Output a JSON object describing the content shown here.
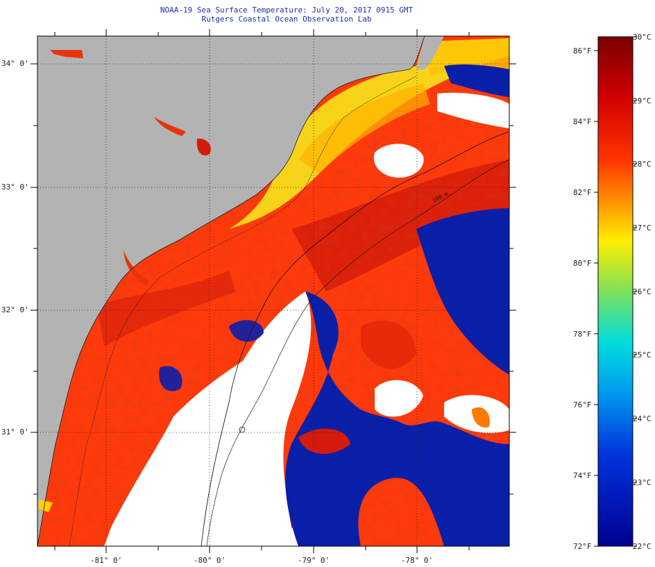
{
  "title": "NOAA-19 Sea Surface Temperature:  July 20, 2017 0915 GMT",
  "subtitle": "Rutgers Coastal Ocean Observation Lab",
  "map": {
    "lat_ticks": [
      "34° 0'",
      "33° 0'",
      "32° 0'",
      "31° 0'"
    ],
    "lon_ticks": [
      "-81° 0'",
      "-80° 0'",
      "-79° 0'",
      "-78° 0'"
    ],
    "isobath_label": "100 m",
    "colors": {
      "land": "#b3b3b3",
      "cloud": "#ffffff",
      "warm_water": "#ff3a0a",
      "hot_water": "#d41a0a",
      "cool_water": "#0a1fa8",
      "coastal_yellow": "#f6ef1c"
    }
  },
  "colorbar": {
    "fahrenheit_labels": [
      "86°F",
      "84°F",
      "82°F",
      "80°F",
      "78°F",
      "76°F",
      "74°F",
      "72°F"
    ],
    "celsius_labels": [
      "30°C",
      "29°C",
      "28°C",
      "27°C",
      "26°C",
      "25°C",
      "24°C",
      "23°C",
      "22°C"
    ],
    "range_celsius": [
      22,
      30
    ],
    "gradient": [
      "#7a0000",
      "#d20000",
      "#ff3300",
      "#ff9900",
      "#ffee00",
      "#7fe05a",
      "#00dddd",
      "#0099ee",
      "#0033dd",
      "#000090"
    ]
  }
}
